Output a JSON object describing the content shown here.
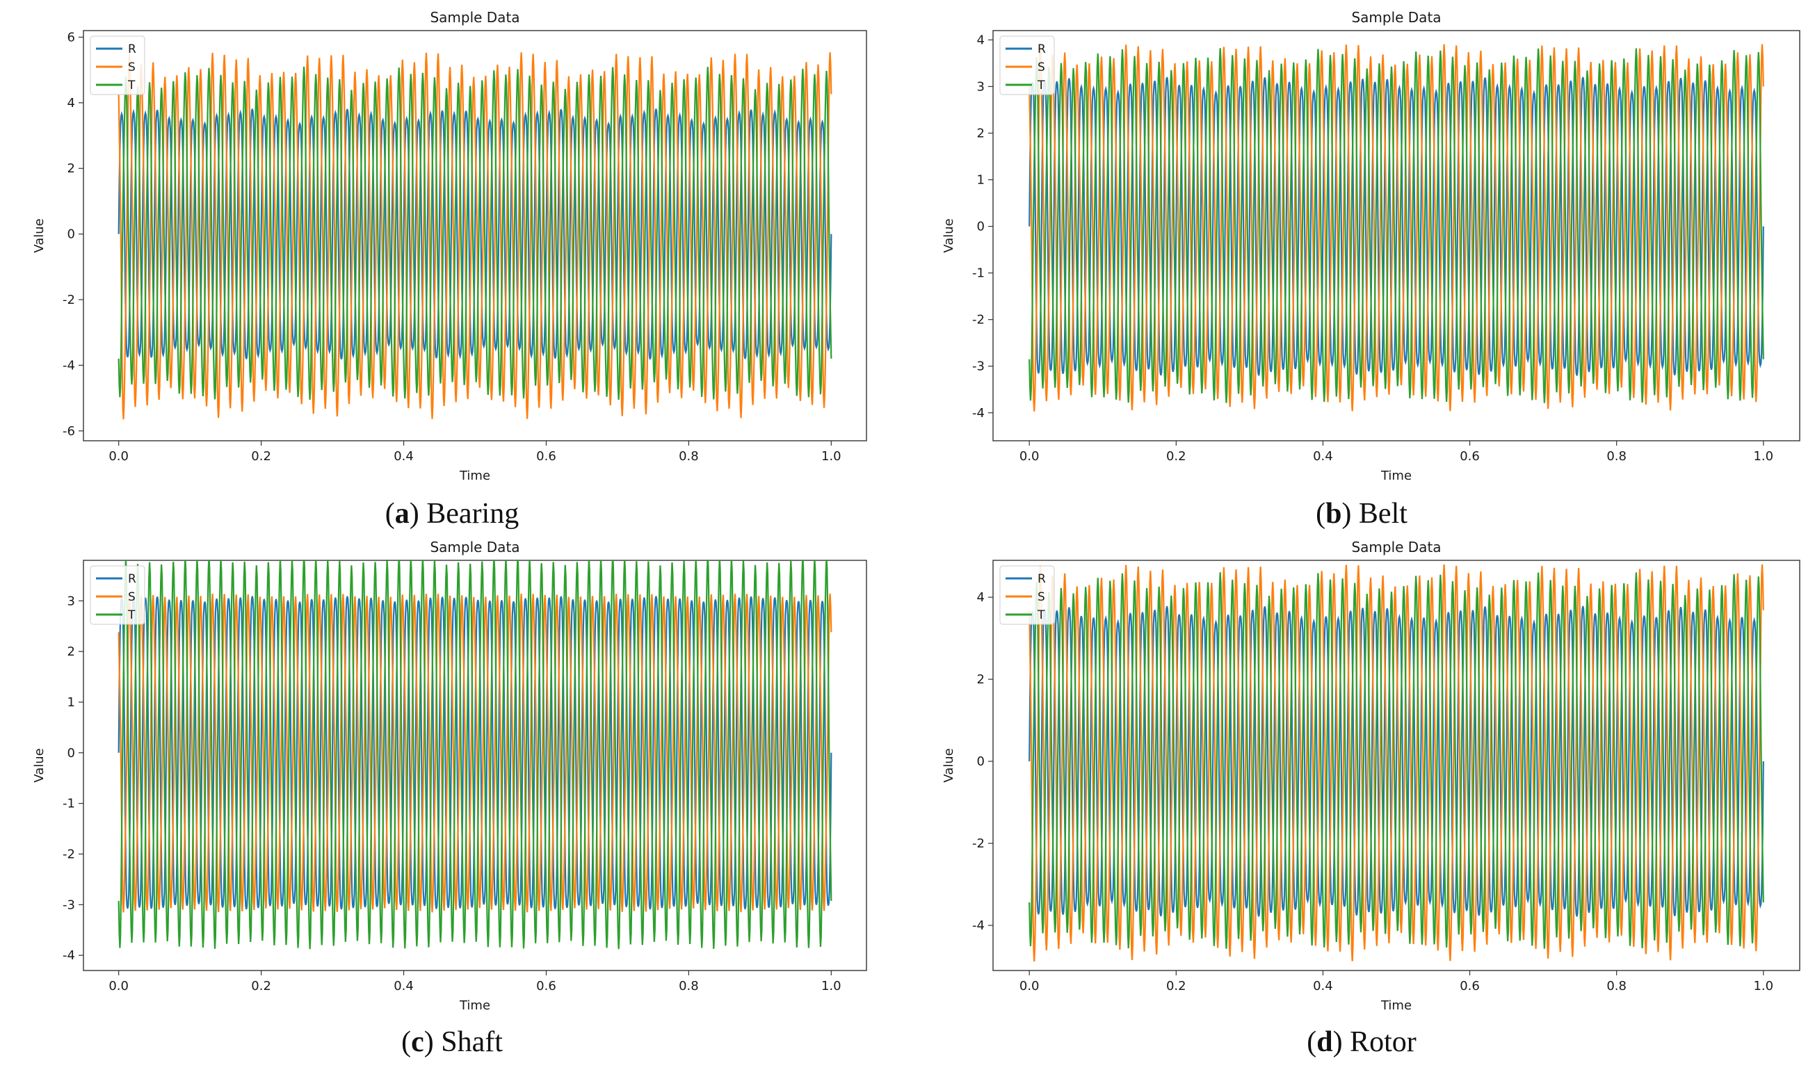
{
  "chart_data": [
    {
      "type": "line",
      "title": "Sample Data",
      "xlabel": "Time",
      "ylabel": "Value",
      "xlim": [
        0.0,
        1.0
      ],
      "ylim": [
        -6.3,
        6.2
      ],
      "x_ticks": [
        "0.0",
        "0.2",
        "0.4",
        "0.6",
        "0.8",
        "1.0"
      ],
      "y_ticks": [
        "-6",
        "-4",
        "-2",
        "0",
        "2",
        "4",
        "6"
      ],
      "y_tick_values": [
        -6,
        -4,
        -2,
        0,
        2,
        4,
        6
      ],
      "legend": [
        "R",
        "S",
        "T"
      ],
      "legend_position": "upper-left",
      "caption_letter": "a",
      "caption_text": "Bearing",
      "cycles": 60,
      "series": [
        {
          "name": "R",
          "color": "#1f77b4",
          "amplitude": 3.9,
          "mod_depth": 0.35,
          "phase_deg": 0
        },
        {
          "name": "S",
          "color": "#ff7f0e",
          "amplitude": 4.9,
          "mod_depth": 0.55,
          "phase_deg": 120
        },
        {
          "name": "T",
          "color": "#2ca02c",
          "amplitude": 4.5,
          "mod_depth": 0.45,
          "phase_deg": 240
        }
      ]
    },
    {
      "type": "line",
      "title": "Sample Data",
      "xlabel": "Time",
      "ylabel": "Value",
      "xlim": [
        0.0,
        1.0
      ],
      "ylim": [
        -4.6,
        4.2
      ],
      "x_ticks": [
        "0.0",
        "0.2",
        "0.4",
        "0.6",
        "0.8",
        "1.0"
      ],
      "y_ticks": [
        "-4",
        "-3",
        "-2",
        "-1",
        "0",
        "1",
        "2",
        "3",
        "4"
      ],
      "y_tick_values": [
        -4,
        -3,
        -2,
        -1,
        0,
        1,
        2,
        3,
        4
      ],
      "legend": [
        "R",
        "S",
        "T"
      ],
      "legend_position": "upper-left",
      "caption_letter": "b",
      "caption_text": "Belt",
      "cycles": 60,
      "series": [
        {
          "name": "R",
          "color": "#1f77b4",
          "amplitude": 3.3,
          "mod_depth": 0.3,
          "phase_deg": 0
        },
        {
          "name": "S",
          "color": "#ff7f0e",
          "amplitude": 3.5,
          "mod_depth": 0.45,
          "phase_deg": 120
        },
        {
          "name": "T",
          "color": "#2ca02c",
          "amplitude": 3.4,
          "mod_depth": 0.4,
          "phase_deg": 240
        }
      ]
    },
    {
      "type": "line",
      "title": "Sample Data",
      "xlabel": "Time",
      "ylabel": "Value",
      "xlim": [
        0.0,
        1.0
      ],
      "ylim": [
        -4.3,
        3.8
      ],
      "x_ticks": [
        "0.0",
        "0.2",
        "0.4",
        "0.6",
        "0.8",
        "1.0"
      ],
      "y_ticks": [
        "-4",
        "-3",
        "-2",
        "-1",
        "0",
        "1",
        "2",
        "3"
      ],
      "y_tick_values": [
        -4,
        -3,
        -2,
        -1,
        0,
        1,
        2,
        3
      ],
      "legend": [
        "R",
        "S",
        "T"
      ],
      "legend_position": "upper-left",
      "caption_letter": "c",
      "caption_text": "Shaft",
      "cycles": 60,
      "series": [
        {
          "name": "R",
          "color": "#1f77b4",
          "amplitude": 3.3,
          "mod_depth": 0.1,
          "phase_deg": 0
        },
        {
          "name": "S",
          "color": "#ff7f0e",
          "amplitude": 2.95,
          "mod_depth": 0.08,
          "phase_deg": 120
        },
        {
          "name": "T",
          "color": "#2ca02c",
          "amplitude": 3.6,
          "mod_depth": 0.15,
          "phase_deg": 240
        }
      ]
    },
    {
      "type": "line",
      "title": "Sample Data",
      "xlabel": "Time",
      "ylabel": "Value",
      "xlim": [
        0.0,
        1.0
      ],
      "ylim": [
        -5.1,
        4.9
      ],
      "x_ticks": [
        "0.0",
        "0.2",
        "0.4",
        "0.6",
        "0.8",
        "1.0"
      ],
      "y_ticks": [
        "-4",
        "-2",
        "0",
        "2",
        "4"
      ],
      "y_tick_values": [
        -4,
        -2,
        0,
        2,
        4
      ],
      "legend": [
        "R",
        "S",
        "T"
      ],
      "legend_position": "upper-left",
      "caption_letter": "d",
      "caption_text": "Rotor",
      "cycles": 60,
      "series": [
        {
          "name": "R",
          "color": "#1f77b4",
          "amplitude": 3.9,
          "mod_depth": 0.3,
          "phase_deg": 0
        },
        {
          "name": "S",
          "color": "#ff7f0e",
          "amplitude": 4.3,
          "mod_depth": 0.45,
          "phase_deg": 120
        },
        {
          "name": "T",
          "color": "#2ca02c",
          "amplitude": 4.1,
          "mod_depth": 0.4,
          "phase_deg": 240
        }
      ]
    }
  ]
}
